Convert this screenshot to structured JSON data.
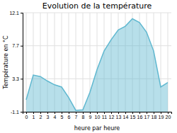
{
  "chart_data": {
    "type": "area",
    "title": "Evolution de la température",
    "x_label": "heure par heure",
    "y_label": "Température en °C",
    "x": [
      0,
      1,
      2,
      3,
      4,
      5,
      6,
      7,
      8,
      9,
      10,
      11,
      12,
      13,
      14,
      15,
      16,
      17,
      18,
      19,
      20
    ],
    "values": [
      0.5,
      3.8,
      3.6,
      3.0,
      2.5,
      2.2,
      0.8,
      -0.9,
      -0.85,
      1.5,
      4.5,
      7.0,
      8.5,
      9.8,
      10.3,
      11.3,
      10.8,
      9.5,
      7.0,
      2.2,
      2.8
    ],
    "color": "#60b8d0",
    "xlim": [
      -0.5,
      20.5
    ],
    "xticks": [
      0,
      1,
      2,
      3,
      4,
      5,
      6,
      7,
      8,
      9,
      10,
      11,
      12,
      13,
      14,
      15,
      16,
      17,
      18,
      19,
      20
    ],
    "ylim": [
      -1.1,
      12.1
    ],
    "yticks": [
      -1.1,
      3.3,
      7.7,
      12.1
    ],
    "grid": true
  }
}
